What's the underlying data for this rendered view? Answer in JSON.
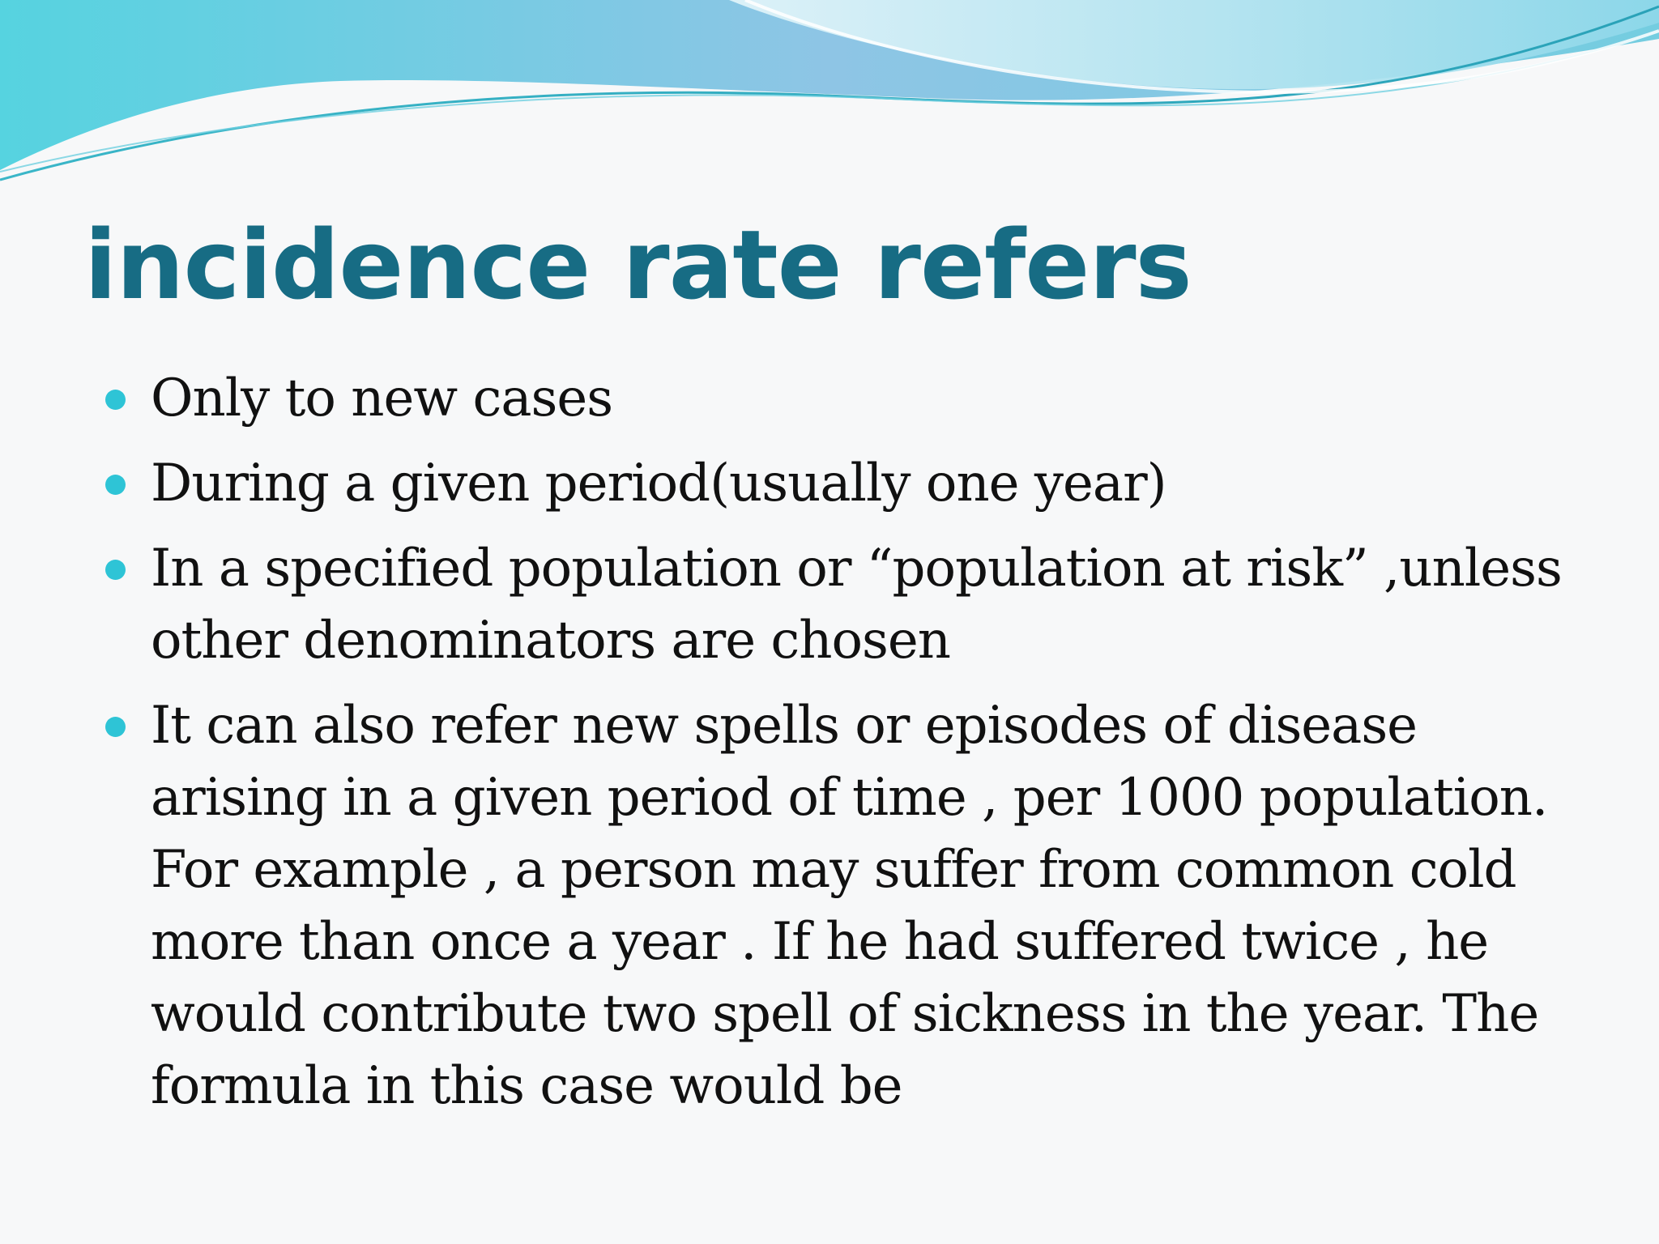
{
  "slide": {
    "title": "incidence rate refers",
    "colors": {
      "title": "#176c84",
      "bullet": "#2ec4d6",
      "text": "#111111",
      "background": "#f7f8f9"
    },
    "bullets": [
      {
        "icon": "bullet-dot-icon",
        "text": "Only to new cases"
      },
      {
        "icon": "bullet-dot-icon",
        "text": "During a given period(usually one year)"
      },
      {
        "icon": "bullet-dot-icon",
        "text": "In a specified population or “population at risk” ,unless other denominators are chosen"
      },
      {
        "icon": "bullet-dot-icon",
        "text": "It can also refer  new spells or episodes of disease arising in a given period of time , per 1000 population. For example , a person may suffer from common cold more than once a year . If he had suffered twice , he would contribute two spell of sickness in the year. The formula in this case would be"
      }
    ]
  }
}
